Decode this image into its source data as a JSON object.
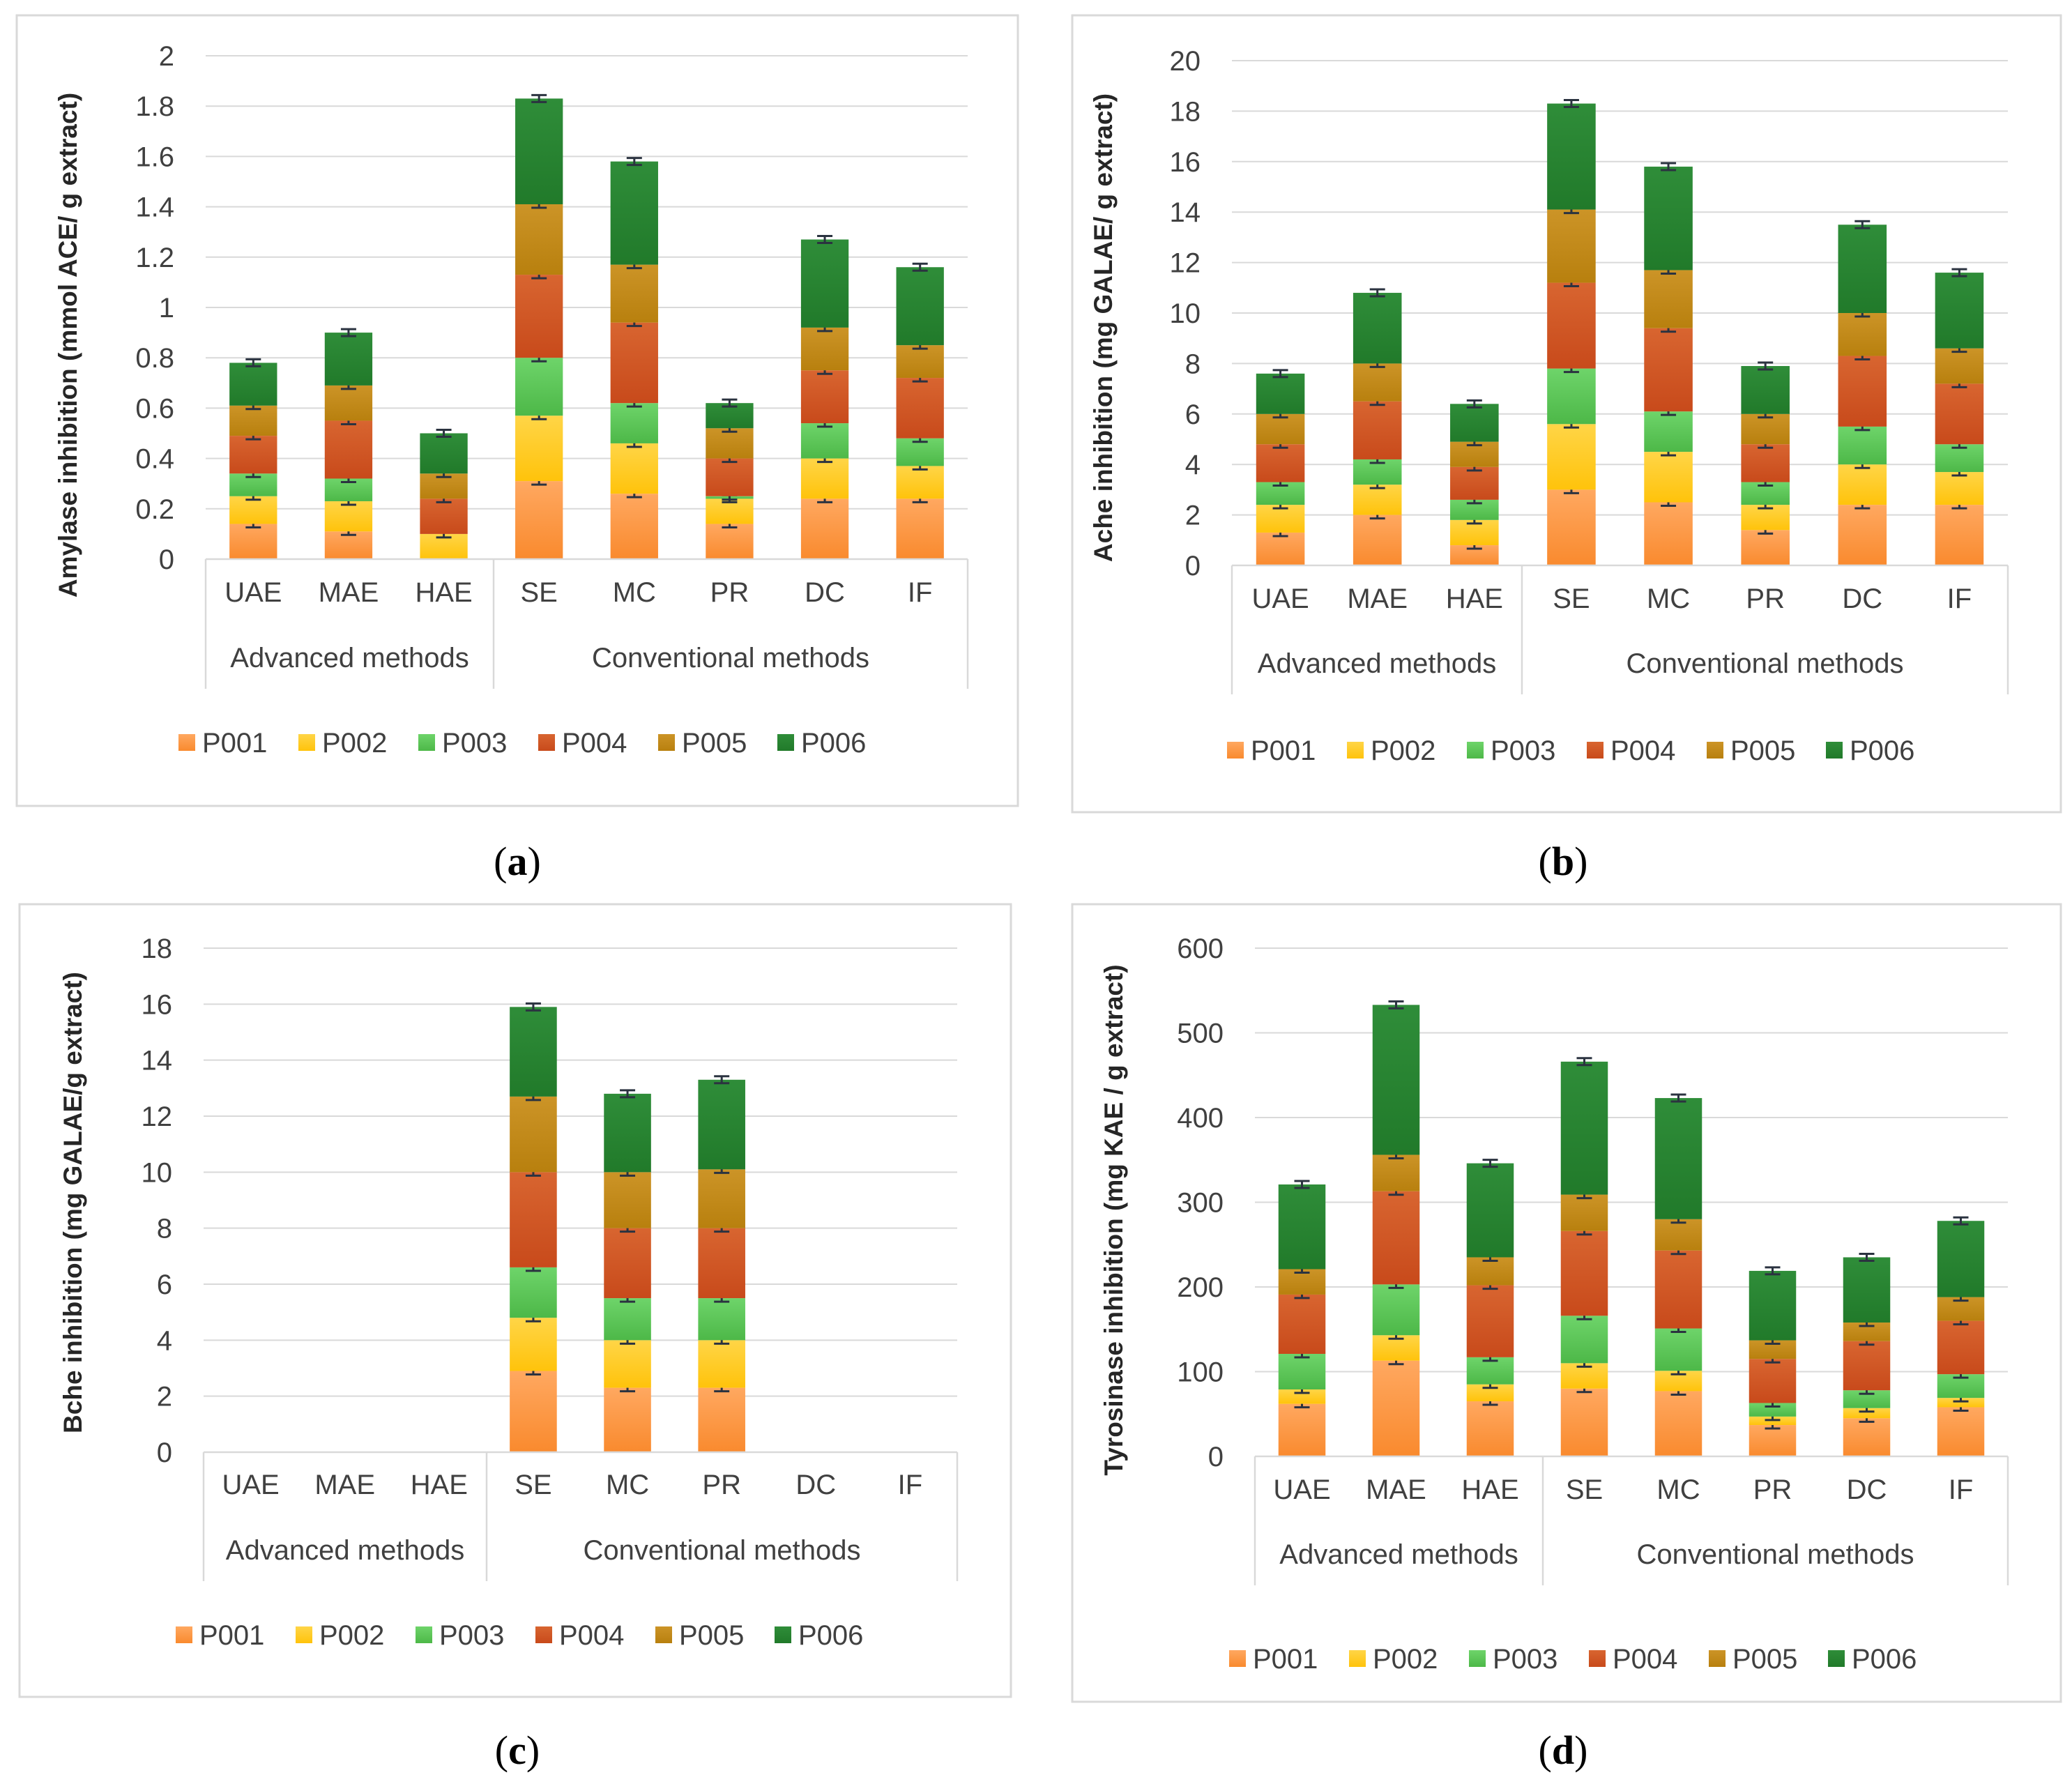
{
  "figure": {
    "series_names": [
      "P001",
      "P002",
      "P003",
      "P004",
      "P005",
      "P006"
    ],
    "series_colors": [
      "#F98A2E",
      "#FFC30B",
      "#4DB848",
      "#C84A1B",
      "#B8800E",
      "#217A2A"
    ],
    "gradient_tops": [
      "#FFA860",
      "#FFD547",
      "#6ED46A",
      "#D86530",
      "#CC9427",
      "#2F8D39"
    ],
    "group_names": [
      "Advanced methods",
      "Conventional methods"
    ],
    "categories": [
      "UAE",
      "MAE",
      "HAE",
      "SE",
      "MC",
      "PR",
      "DC",
      "IF"
    ]
  },
  "chart_data": [
    {
      "type": "bar",
      "stacked": true,
      "caption_open": "(",
      "caption_letter": "a",
      "caption_close": ")",
      "ylabel": "Amylase inhibition (mmol ACE/ g extract)",
      "xlabel": "",
      "ylim": [
        0,
        2
      ],
      "yticks": [
        0,
        0.2,
        0.4,
        0.6,
        0.8,
        1,
        1.2,
        1.4,
        1.6,
        1.8,
        2
      ],
      "ytick_labels": [
        "0",
        "0.2",
        "0.4",
        "0.6",
        "0.8",
        "1",
        "1.2",
        "1.4",
        "1.6",
        "1.8",
        "2"
      ],
      "categories": [
        "UAE",
        "MAE",
        "HAE",
        "SE",
        "MC",
        "PR",
        "DC",
        "IF"
      ],
      "groups": [
        {
          "label": "Advanced methods",
          "categories": [
            "UAE",
            "MAE",
            "HAE"
          ]
        },
        {
          "label": "Conventional methods",
          "categories": [
            "SE",
            "MC",
            "PR",
            "DC",
            "IF"
          ]
        }
      ],
      "legend_position": "bottom",
      "series": [
        {
          "name": "P001",
          "values": [
            0.14,
            0.11,
            0.0,
            0.31,
            0.26,
            0.14,
            0.24,
            0.24
          ]
        },
        {
          "name": "P002",
          "values": [
            0.11,
            0.12,
            0.1,
            0.26,
            0.2,
            0.1,
            0.16,
            0.13
          ]
        },
        {
          "name": "P003",
          "values": [
            0.09,
            0.09,
            0.0,
            0.23,
            0.16,
            0.01,
            0.14,
            0.11
          ]
        },
        {
          "name": "P004",
          "values": [
            0.15,
            0.23,
            0.14,
            0.33,
            0.32,
            0.15,
            0.21,
            0.24
          ]
        },
        {
          "name": "P005",
          "values": [
            0.12,
            0.14,
            0.1,
            0.28,
            0.23,
            0.12,
            0.17,
            0.13
          ]
        },
        {
          "name": "P006",
          "values": [
            0.17,
            0.21,
            0.16,
            0.42,
            0.41,
            0.1,
            0.35,
            0.31
          ]
        }
      ]
    },
    {
      "type": "bar",
      "stacked": true,
      "caption_open": "(",
      "caption_letter": "b",
      "caption_close": ")",
      "ylabel": "Ache inhibition (mg GALAE/ g extract)",
      "xlabel": "",
      "ylim": [
        0,
        20
      ],
      "yticks": [
        0,
        2,
        4,
        6,
        8,
        10,
        12,
        14,
        16,
        18,
        20
      ],
      "ytick_labels": [
        "0",
        "2",
        "4",
        "6",
        "8",
        "10",
        "12",
        "14",
        "16",
        "18",
        "20"
      ],
      "categories": [
        "UAE",
        "MAE",
        "HAE",
        "SE",
        "MC",
        "PR",
        "DC",
        "IF"
      ],
      "groups": [
        {
          "label": "Advanced methods",
          "categories": [
            "UAE",
            "MAE",
            "HAE"
          ]
        },
        {
          "label": "Conventional methods",
          "categories": [
            "SE",
            "MC",
            "PR",
            "DC",
            "IF"
          ]
        }
      ],
      "legend_position": "bottom",
      "series": [
        {
          "name": "P001",
          "values": [
            1.3,
            2.0,
            0.8,
            3.0,
            2.5,
            1.4,
            2.4,
            2.4
          ]
        },
        {
          "name": "P002",
          "values": [
            1.1,
            1.2,
            1.0,
            2.6,
            2.0,
            1.0,
            1.6,
            1.3
          ]
        },
        {
          "name": "P003",
          "values": [
            0.9,
            1.0,
            0.8,
            2.2,
            1.6,
            0.9,
            1.5,
            1.1
          ]
        },
        {
          "name": "P004",
          "values": [
            1.5,
            2.3,
            1.3,
            3.4,
            3.3,
            1.5,
            2.8,
            2.4
          ]
        },
        {
          "name": "P005",
          "values": [
            1.2,
            1.5,
            1.0,
            2.9,
            2.3,
            1.2,
            1.7,
            1.4
          ]
        },
        {
          "name": "P006",
          "values": [
            1.6,
            2.8,
            1.5,
            4.2,
            4.1,
            1.9,
            3.5,
            3.0
          ]
        }
      ]
    },
    {
      "type": "bar",
      "stacked": true,
      "caption_open": "(",
      "caption_letter": "c",
      "caption_close": ")",
      "ylabel": "Bche inhibition (mg GALAE/g extract)",
      "xlabel": "",
      "ylim": [
        0,
        18
      ],
      "yticks": [
        0,
        2,
        4,
        6,
        8,
        10,
        12,
        14,
        16,
        18
      ],
      "ytick_labels": [
        "0",
        "2",
        "4",
        "6",
        "8",
        "10",
        "12",
        "14",
        "16",
        "18"
      ],
      "categories": [
        "UAE",
        "MAE",
        "HAE",
        "SE",
        "MC",
        "PR",
        "DC",
        "IF"
      ],
      "groups": [
        {
          "label": "Advanced methods",
          "categories": [
            "UAE",
            "MAE",
            "HAE"
          ]
        },
        {
          "label": "Conventional methods",
          "categories": [
            "SE",
            "MC",
            "PR",
            "DC",
            "IF"
          ]
        }
      ],
      "legend_position": "bottom",
      "series": [
        {
          "name": "P001",
          "values": [
            0,
            0,
            0,
            2.9,
            2.3,
            2.3,
            0,
            0
          ]
        },
        {
          "name": "P002",
          "values": [
            0,
            0,
            0,
            1.9,
            1.7,
            1.7,
            0,
            0
          ]
        },
        {
          "name": "P003",
          "values": [
            0,
            0,
            0,
            1.8,
            1.5,
            1.5,
            0,
            0
          ]
        },
        {
          "name": "P004",
          "values": [
            0,
            0,
            0,
            3.4,
            2.5,
            2.5,
            0,
            0
          ]
        },
        {
          "name": "P005",
          "values": [
            0,
            0,
            0,
            2.7,
            2.0,
            2.1,
            0,
            0
          ]
        },
        {
          "name": "P006",
          "values": [
            0,
            0,
            0,
            3.2,
            2.8,
            3.2,
            0,
            0
          ]
        }
      ]
    },
    {
      "type": "bar",
      "stacked": true,
      "caption_open": "(",
      "caption_letter": "d",
      "caption_close": ")",
      "ylabel": "Tyrosinase inhibition (mg KAE / g extract)",
      "xlabel": "",
      "ylim": [
        0,
        600
      ],
      "yticks": [
        0,
        100,
        200,
        300,
        400,
        500,
        600
      ],
      "ytick_labels": [
        "0",
        "100",
        "200",
        "300",
        "400",
        "500",
        "600"
      ],
      "categories": [
        "UAE",
        "MAE",
        "HAE",
        "SE",
        "MC",
        "PR",
        "DC",
        "IF"
      ],
      "groups": [
        {
          "label": "Advanced methods",
          "categories": [
            "UAE",
            "MAE",
            "HAE"
          ]
        },
        {
          "label": "Conventional methods",
          "categories": [
            "SE",
            "MC",
            "PR",
            "DC",
            "IF"
          ]
        }
      ],
      "legend_position": "bottom",
      "series": [
        {
          "name": "P001",
          "values": [
            62,
            113,
            65,
            80,
            77,
            37,
            45,
            58
          ]
        },
        {
          "name": "P002",
          "values": [
            17,
            30,
            20,
            30,
            24,
            10,
            12,
            11
          ]
        },
        {
          "name": "P003",
          "values": [
            42,
            60,
            32,
            56,
            50,
            16,
            21,
            28
          ]
        },
        {
          "name": "P004",
          "values": [
            70,
            110,
            85,
            100,
            92,
            52,
            58,
            63
          ]
        },
        {
          "name": "P005",
          "values": [
            30,
            43,
            33,
            43,
            37,
            22,
            22,
            28
          ]
        },
        {
          "name": "P006",
          "values": [
            100,
            177,
            111,
            157,
            143,
            82,
            77,
            90
          ]
        }
      ]
    }
  ]
}
